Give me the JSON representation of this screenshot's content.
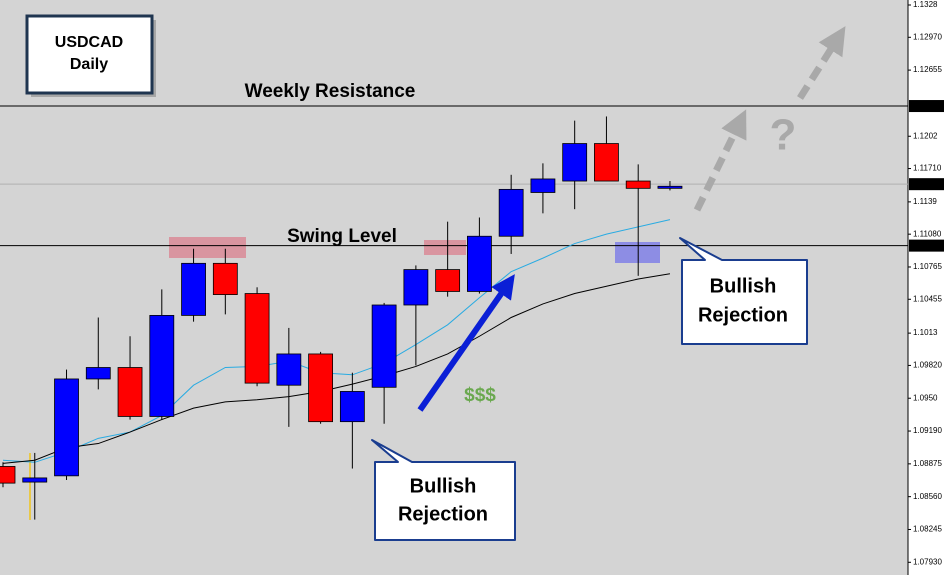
{
  "chart_data": {
    "type": "candlestick",
    "title_lines": [
      "USDCAD",
      "Daily"
    ],
    "bull_color": "#0000ff",
    "bear_color": "#ff0000",
    "series": {
      "open": [
        1.0885,
        1.087,
        1.0876,
        1.0969,
        1.098,
        1.0933,
        1.103,
        1.108,
        1.1051,
        1.0963,
        1.0993,
        1.0928,
        1.0961,
        1.104,
        1.1074,
        1.1053,
        1.1106,
        1.1148,
        1.1159,
        1.1195,
        1.1159,
        1.1152
      ],
      "high": [
        1.0889,
        1.0898,
        1.0978,
        1.1028,
        1.101,
        1.1055,
        1.1094,
        1.1094,
        1.1057,
        1.1018,
        1.0995,
        1.0975,
        1.1042,
        1.1078,
        1.112,
        1.1124,
        1.1165,
        1.1176,
        1.1217,
        1.1221,
        1.1175,
        1.1159
      ],
      "low": [
        1.0865,
        1.0834,
        1.0872,
        1.0959,
        1.093,
        1.093,
        1.1024,
        1.1031,
        1.0962,
        1.0923,
        1.0926,
        1.0883,
        1.0926,
        1.0982,
        1.1048,
        1.1051,
        1.1089,
        1.1128,
        1.1132,
        1.1159,
        1.1068,
        1.115
      ],
      "close": [
        1.0869,
        1.0874,
        1.0969,
        1.098,
        1.0933,
        1.103,
        1.108,
        1.105,
        1.0965,
        1.0993,
        1.0928,
        1.0957,
        1.104,
        1.1074,
        1.1053,
        1.1106,
        1.1151,
        1.1161,
        1.1195,
        1.1159,
        1.1152,
        1.1154
      ]
    },
    "ma_lines": [
      {
        "color": "#29abe2",
        "values": [
          1.0891,
          1.0889,
          1.0899,
          1.0912,
          1.0918,
          1.0934,
          1.0963,
          1.098,
          1.0981,
          1.0986,
          1.0975,
          1.0973,
          1.0984,
          1.1002,
          1.1021,
          1.1047,
          1.1072,
          1.1085,
          1.1099,
          1.1108,
          1.1115,
          1.1122
        ]
      },
      {
        "color": "#000000",
        "values": [
          1.0888,
          1.0891,
          1.0903,
          1.0907,
          1.0918,
          1.093,
          1.0941,
          1.0947,
          1.0949,
          1.0952,
          1.0957,
          1.0964,
          1.0972,
          1.0981,
          1.0993,
          1.101,
          1.1028,
          1.1041,
          1.1051,
          1.1058,
          1.1065,
          1.107
        ]
      }
    ],
    "price_lines": [
      {
        "value": 1.1231,
        "label": "1.1231",
        "color": "#000000"
      },
      {
        "value": 1.1156,
        "label": "1.1156",
        "color": "#b0b0b0"
      },
      {
        "value": 1.1097,
        "label": "1.1097",
        "color": "#000000"
      }
    ],
    "ylim": [
      1.07808,
      1.13328
    ],
    "yticks": [
      1.1328,
      {
        "value": 1.1297,
        "label": "1.12970"
      },
      1.12655,
      1.1202,
      {
        "value": 1.1171,
        "label": "1.11710"
      },
      1.1139,
      {
        "value": 1.1108,
        "label": "1.11080"
      },
      1.10765,
      1.10455,
      1.1013,
      {
        "value": 1.0982,
        "label": "1.09820"
      },
      {
        "value": 1.09505,
        "label": "1.0950"
      },
      {
        "value": 1.0919,
        "label": "1.09190"
      },
      1.08875,
      {
        "value": 1.0856,
        "label": "1.08560"
      },
      1.08245,
      {
        "value": 1.0793,
        "label": "1.07930"
      }
    ],
    "annotations": {
      "weekly": "Weekly Resistance",
      "swing": "Swing Level",
      "money": "$$$",
      "question": "?",
      "callout1": [
        "Bullish",
        "Rejection"
      ],
      "callout2": [
        "Bullish",
        "Rejection"
      ]
    }
  }
}
